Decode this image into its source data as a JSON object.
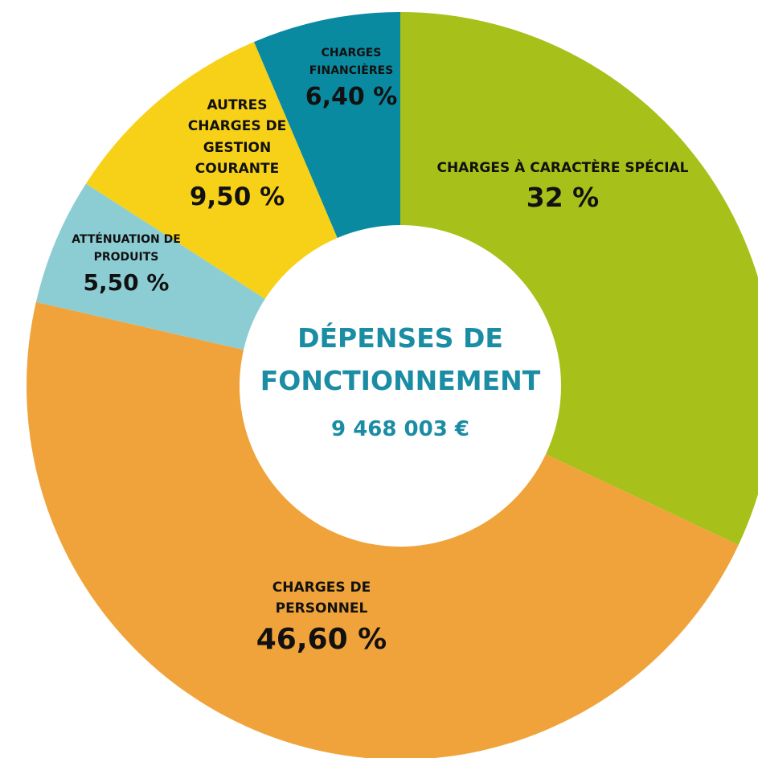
{
  "chart_data": {
    "type": "donut",
    "title": "DÉPENSES DE FONCTIONNEMENT",
    "subtitle": "9 468 003 €",
    "categories": [
      "CHARGES À CARACTÈRE SPÉCIAL",
      "CHARGES DE PERSONNEL",
      "ATTÉNUATION DE PRODUITS",
      "AUTRES CHARGES DE GESTION COURANTE",
      "CHARGES FINANCIÈRES"
    ],
    "values": [
      32,
      46.6,
      5.5,
      9.5,
      6.4
    ],
    "value_labels": [
      "32 %",
      "46,60 %",
      "5,50 %",
      "9,50 %",
      "6,40 %"
    ],
    "colors": [
      "#a8c01a",
      "#f0a33a",
      "#8ccdd4",
      "#f7d118",
      "#0a8aa0"
    ]
  }
}
